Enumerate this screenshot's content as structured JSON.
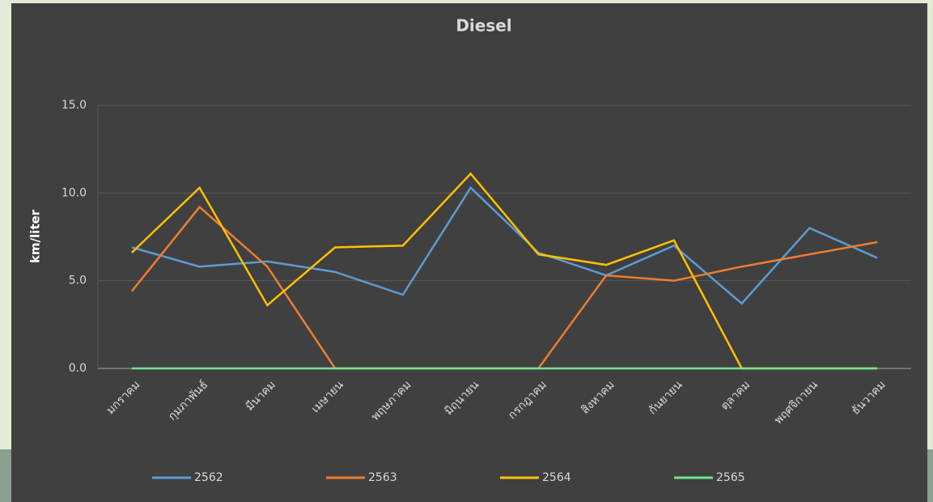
{
  "chart_data": {
    "type": "line",
    "title": "Diesel",
    "ylabel": "km/liter",
    "categories": [
      "มกราคม",
      "กุมภาพันธ์",
      "มีนาคม",
      "เมษายน",
      "พฤษภาคม",
      "มิถุนายน",
      "กรกฎาคม",
      "สิงหาคม",
      "กันยายน",
      "ตุลาคม",
      "พฤศจิกายน",
      "ธันวาคม"
    ],
    "series": [
      {
        "name": "2562",
        "color": "#5b9bd5",
        "values": [
          6.9,
          5.8,
          6.1,
          5.5,
          4.2,
          10.3,
          6.6,
          5.3,
          7.0,
          3.7,
          8.0,
          6.3
        ]
      },
      {
        "name": "2563",
        "color": "#ed7d31",
        "values": [
          4.4,
          9.2,
          5.8,
          0,
          0,
          0,
          0,
          5.3,
          5.0,
          5.8,
          6.5,
          7.2
        ]
      },
      {
        "name": "2564",
        "color": "#ffc000",
        "values": [
          6.6,
          10.3,
          3.6,
          6.9,
          7.0,
          11.1,
          6.5,
          5.9,
          7.3,
          0,
          0,
          0
        ]
      },
      {
        "name": "2565",
        "color": "#6ee88f",
        "values": [
          0,
          0,
          0,
          0,
          0,
          0,
          0,
          0,
          0,
          0,
          0,
          0
        ]
      }
    ],
    "ylim": [
      0,
      15
    ],
    "yticks": [
      {
        "value": 0,
        "label": "0.0"
      },
      {
        "value": 5,
        "label": "5.0"
      },
      {
        "value": 10,
        "label": "10.0"
      },
      {
        "value": 15,
        "label": "15.0"
      }
    ],
    "grid": true,
    "legend": "bottom"
  }
}
